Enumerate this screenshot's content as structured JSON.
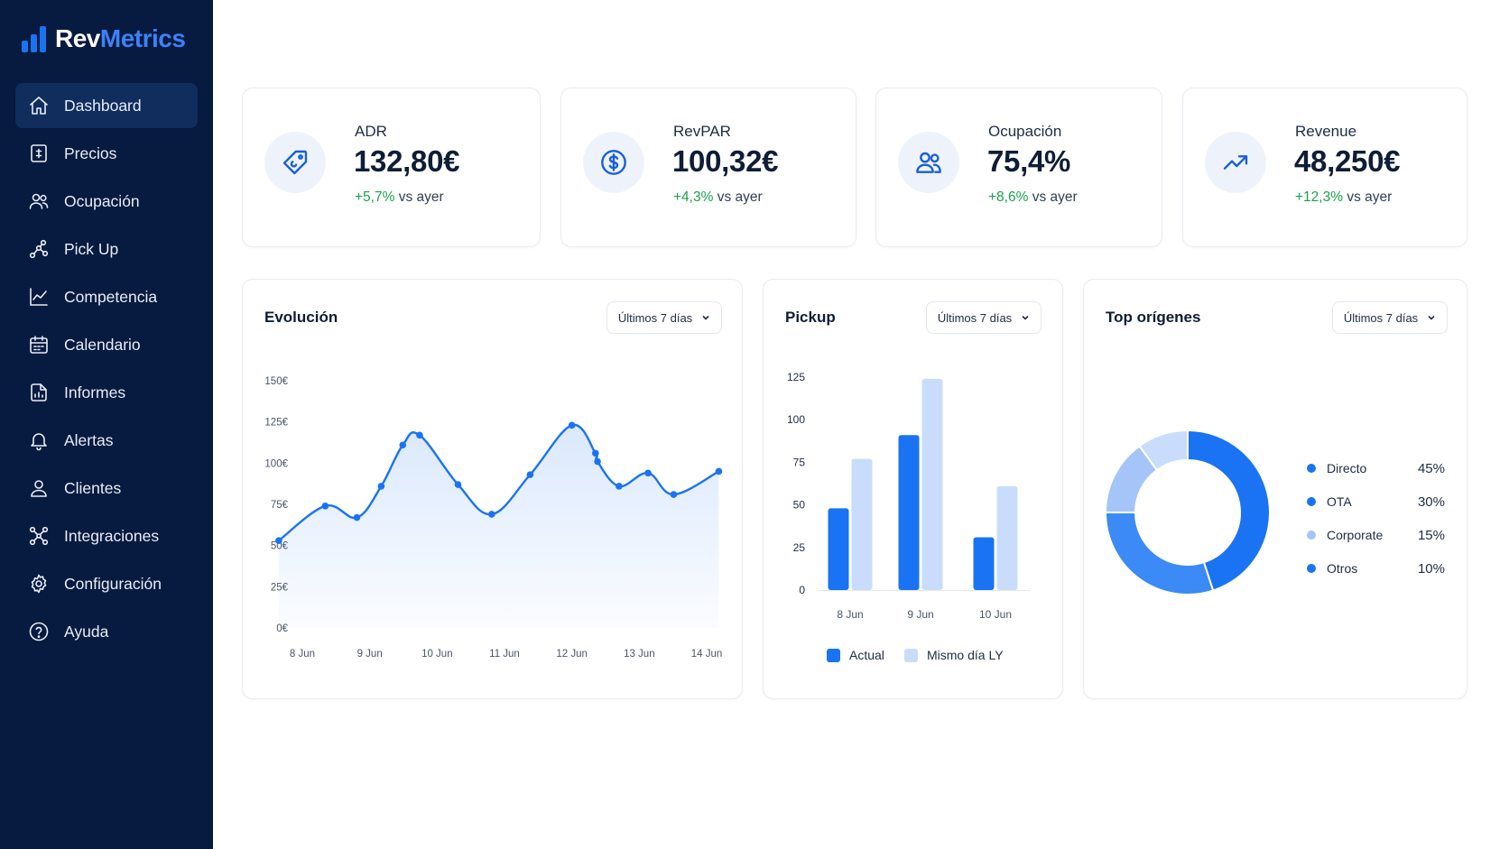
{
  "app": {
    "logo_part1": "Rev",
    "logo_part2": "Metrics"
  },
  "sidebar": {
    "items": [
      {
        "label": "Dashboard",
        "icon": "home-icon",
        "active": true
      },
      {
        "label": "Precios",
        "icon": "price-tag-doc-icon"
      },
      {
        "label": "Ocupación",
        "icon": "users-icon"
      },
      {
        "label": "Pick Up",
        "icon": "nodes-icon"
      },
      {
        "label": "Competencia",
        "icon": "line-chart-icon"
      },
      {
        "label": "Calendario",
        "icon": "calendar-icon"
      },
      {
        "label": "Informes",
        "icon": "report-icon"
      },
      {
        "label": "Alertas",
        "icon": "bell-icon"
      },
      {
        "label": "Clientes",
        "icon": "user-icon"
      },
      {
        "label": "Integraciones",
        "icon": "integrations-icon"
      },
      {
        "label": "Configuración",
        "icon": "gear-icon"
      },
      {
        "label": "Ayuda",
        "icon": "help-icon"
      }
    ]
  },
  "kpis": [
    {
      "label": "ADR",
      "value": "132,80€",
      "delta": "+5,7%",
      "suffix": " vs ayer",
      "icon": "tag-icon"
    },
    {
      "label": "RevPAR",
      "value": "100,32€",
      "delta": "+4,3%",
      "suffix": " vs ayer",
      "icon": "dollar-icon"
    },
    {
      "label": "Ocupación",
      "value": "75,4%",
      "delta": "+8,6%",
      "suffix": " vs ayer",
      "icon": "users-icon"
    },
    {
      "label": "Revenue",
      "value": "48,250€",
      "delta": "+12,3%",
      "suffix": " vs ayer",
      "icon": "trend-up-icon"
    }
  ],
  "panels": {
    "evolucion": {
      "title": "Evolución",
      "range": "Últimos 7 días"
    },
    "pickup": {
      "title": "Pickup",
      "range": "Últimos 7 días"
    },
    "origenes": {
      "title": "Top orígenes",
      "range": "Últimos 7 días"
    }
  },
  "colors": {
    "primary": "#1a73f2",
    "secondary": "#c9dcfb",
    "sidebar_bg": "#071a3f",
    "positive": "#18a34a"
  },
  "chart_data": [
    {
      "type": "line",
      "title": "Evolución",
      "x_ticks": [
        "8 Jun",
        "9 Jun",
        "10 Jun",
        "11 Jun",
        "12 Jun",
        "13 Jun",
        "14 Jun"
      ],
      "y_ticks": [
        "0€",
        "25€",
        "50€",
        "75€",
        "100€",
        "125€",
        "150€"
      ],
      "ylim": [
        0,
        150
      ],
      "points": [
        {
          "x": 7.65,
          "y": 53
        },
        {
          "x": 8.34,
          "y": 74
        },
        {
          "x": 8.81,
          "y": 67
        },
        {
          "x": 9.17,
          "y": 86
        },
        {
          "x": 9.49,
          "y": 111
        },
        {
          "x": 9.74,
          "y": 117
        },
        {
          "x": 10.31,
          "y": 87
        },
        {
          "x": 10.81,
          "y": 69
        },
        {
          "x": 11.38,
          "y": 93
        },
        {
          "x": 12.0,
          "y": 123
        },
        {
          "x": 12.35,
          "y": 106
        },
        {
          "x": 12.38,
          "y": 101
        },
        {
          "x": 12.7,
          "y": 86
        },
        {
          "x": 13.13,
          "y": 94
        },
        {
          "x": 13.51,
          "y": 81
        },
        {
          "x": 14.18,
          "y": 95
        }
      ]
    },
    {
      "type": "bar",
      "title": "Pickup",
      "categories": [
        "8 Jun",
        "9 Jun",
        "10 Jun"
      ],
      "y_ticks": [
        "0",
        "25",
        "50",
        "75",
        "100",
        "125"
      ],
      "ylim": [
        0,
        125
      ],
      "series": [
        {
          "name": "Actual",
          "values": [
            48,
            91,
            31
          ]
        },
        {
          "name": "Mismo día LY",
          "values": [
            77,
            124,
            61
          ]
        }
      ]
    },
    {
      "type": "pie",
      "title": "Top orígenes",
      "slices": [
        {
          "label": "Directo",
          "value": 45,
          "pct": "45%",
          "color": "#1a73f2"
        },
        {
          "label": "OTA",
          "value": 30,
          "pct": "30%",
          "color": "#3b8af5"
        },
        {
          "label": "Corporate",
          "value": 15,
          "pct": "15%",
          "color": "#a5c5f8"
        },
        {
          "label": "Otros",
          "value": 10,
          "pct": "10%",
          "color": "#c9dcfb"
        }
      ]
    }
  ]
}
